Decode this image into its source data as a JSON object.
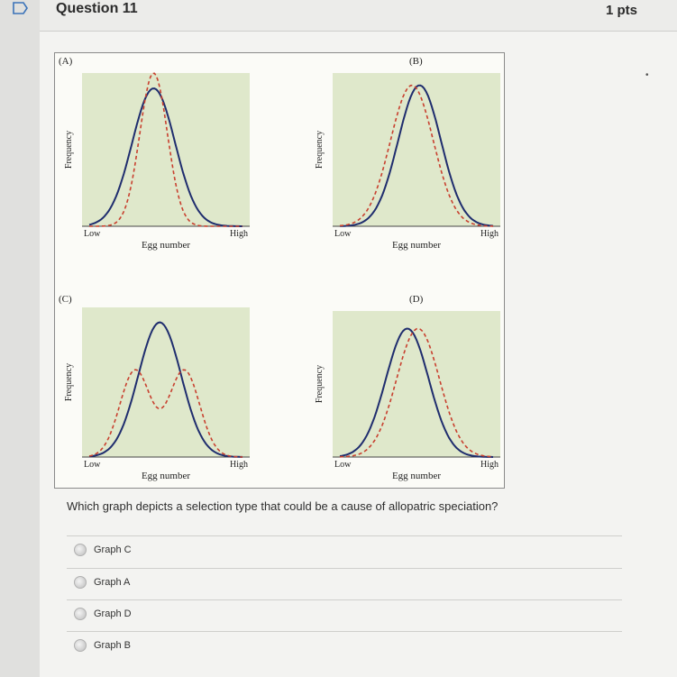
{
  "question": {
    "title": "Question 11",
    "points": "1 pts",
    "prompt": "Which graph depicts a selection type that could be a  cause of allopatric speciation?"
  },
  "figure": {
    "panels": [
      {
        "label": "(A)",
        "ylabel": "Frequency",
        "xlabel": "Egg number",
        "low": "Low",
        "high": "High"
      },
      {
        "label": "(B)",
        "ylabel": "Frequency",
        "xlabel": "Egg number",
        "low": "Low",
        "high": "High"
      },
      {
        "label": "(C)",
        "ylabel": "Frequency",
        "xlabel": "Egg number",
        "low": "Low",
        "high": "High"
      },
      {
        "label": "(D)",
        "ylabel": "Frequency",
        "xlabel": "Egg number",
        "low": "Low",
        "high": "High"
      }
    ],
    "colors": {
      "plot_bg": "#dfe8cb",
      "solid_curve": "#1f2d6e",
      "dashed_curve": "#c8402f"
    }
  },
  "options": [
    {
      "label": "Graph C"
    },
    {
      "label": "Graph A"
    },
    {
      "label": "Graph D"
    },
    {
      "label": "Graph B"
    }
  ]
}
